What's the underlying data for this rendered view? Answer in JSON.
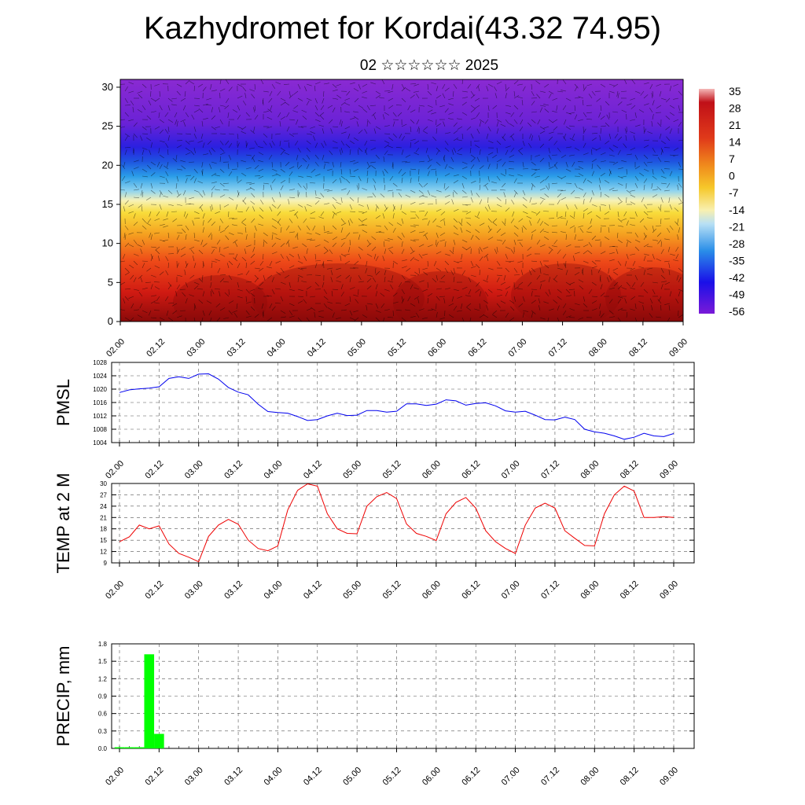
{
  "title": "Kazhydromet for Kordai(43.32 74.95)",
  "subtitle": "02 ☆☆☆☆☆☆ 2025",
  "chart_data": [
    {
      "type": "heatmap",
      "name": "upper-air-section",
      "x_ticks": [
        "02.00",
        "02.12",
        "03.00",
        "03.12",
        "04.00",
        "04.12",
        "05.00",
        "05.12",
        "06.00",
        "06.12",
        "07.00",
        "07.12",
        "08.00",
        "08.12",
        "09.00"
      ],
      "y_ticks": [
        0,
        5,
        10,
        15,
        20,
        25,
        30
      ],
      "ylim": [
        0,
        31
      ],
      "colorbar_labels": [
        "35",
        "28",
        "21",
        "14",
        "7",
        "0",
        "-7",
        "-14",
        "-21",
        "-28",
        "-35",
        "-42",
        "-49",
        "-56"
      ],
      "colors": [
        "#7a1ad8",
        "#1a2ee0",
        "#27a8ee",
        "#f6f1b0",
        "#f6d02a",
        "#f08f1c",
        "#e0381a",
        "#b10f0f"
      ],
      "has_wind_barbs": true
    },
    {
      "type": "line",
      "name": "PMSL",
      "ylabel": "PMSL",
      "y_ticks": [
        "1028",
        "1024",
        "1020",
        "1016",
        "1012",
        "1008",
        "1004"
      ],
      "ylim": [
        1004,
        1028
      ],
      "color": "#0000ee",
      "x_ticks": [
        "02.00",
        "02.12",
        "03.00",
        "03.12",
        "04.00",
        "04.12",
        "05.00",
        "05.12",
        "06.00",
        "06.12",
        "07.00",
        "07.12",
        "08.00",
        "08.12",
        "09.00"
      ],
      "x": [
        0,
        3,
        6,
        9,
        12,
        15,
        18,
        21,
        24,
        27,
        30,
        33,
        36,
        39,
        42,
        45,
        48,
        51,
        54,
        57,
        60,
        63,
        66,
        69,
        72,
        75,
        78,
        81,
        84,
        87,
        90,
        93,
        96,
        99,
        102,
        105,
        108,
        111,
        114,
        117,
        120,
        123,
        126,
        129,
        132,
        135,
        138,
        141,
        144,
        147,
        150,
        153,
        156,
        159,
        162,
        165,
        168
      ],
      "values": [
        1019.0,
        1019.8,
        1020.1,
        1020.3,
        1020.7,
        1023.2,
        1023.7,
        1023.2,
        1024.5,
        1024.6,
        1023.0,
        1020.5,
        1019.1,
        1018.3,
        1015.5,
        1013.3,
        1013.0,
        1012.8,
        1011.8,
        1010.6,
        1010.9,
        1012.0,
        1012.8,
        1012.1,
        1012.2,
        1013.6,
        1013.6,
        1013.1,
        1013.4,
        1015.6,
        1015.6,
        1015.1,
        1015.5,
        1016.8,
        1016.5,
        1015.2,
        1015.7,
        1015.9,
        1015.0,
        1013.5,
        1013.1,
        1013.4,
        1012.2,
        1010.9,
        1010.8,
        1011.6,
        1010.9,
        1008.0,
        1007.2,
        1006.8,
        1006.0,
        1005.0,
        1005.6,
        1006.8,
        1006.0,
        1005.8,
        1006.7
      ]
    },
    {
      "type": "line",
      "name": "TEMP at 2 M",
      "ylabel": "TEMP at 2 M",
      "y_ticks": [
        "30",
        "27",
        "24",
        "21",
        "18",
        "15",
        "12",
        "9"
      ],
      "ylim": [
        9,
        30
      ],
      "color": "#ee0000",
      "x_ticks": [
        "02.00",
        "02.12",
        "03.00",
        "03.12",
        "04.00",
        "04.12",
        "05.00",
        "05.12",
        "06.00",
        "06.12",
        "07.00",
        "07.12",
        "08.00",
        "08.12",
        "09.00"
      ],
      "x": [
        0,
        3,
        6,
        9,
        12,
        15,
        18,
        21,
        24,
        27,
        30,
        33,
        36,
        39,
        42,
        45,
        48,
        51,
        54,
        57,
        60,
        63,
        66,
        69,
        72,
        75,
        78,
        81,
        84,
        87,
        90,
        93,
        96,
        99,
        102,
        105,
        108,
        111,
        114,
        117,
        120,
        123,
        126,
        129,
        132,
        135,
        138,
        141,
        144,
        147,
        150,
        153,
        156,
        159,
        162,
        165,
        168
      ],
      "values": [
        14.6,
        15.9,
        19.0,
        18.0,
        18.8,
        14.0,
        11.5,
        10.5,
        9.3,
        16.0,
        19.0,
        20.5,
        19.2,
        15.0,
        12.8,
        12.2,
        13.5,
        23.0,
        28.2,
        29.9,
        29.3,
        22.0,
        18.0,
        16.8,
        16.7,
        24.0,
        26.5,
        27.6,
        26.0,
        19.3,
        16.8,
        16.0,
        14.9,
        22.0,
        25.0,
        26.3,
        23.5,
        17.5,
        14.6,
        12.8,
        11.5,
        19.0,
        23.5,
        24.8,
        23.5,
        17.5,
        15.5,
        13.6,
        13.5,
        22.0,
        27.0,
        29.3,
        28.0,
        21.0,
        21.0,
        21.2,
        21.0
      ]
    },
    {
      "type": "bar",
      "name": "PRECIP",
      "ylabel": "PRECIP, mm",
      "y_ticks": [
        "1.8",
        "1.5",
        "1.2",
        "0.9",
        "0.6",
        "0.3",
        "0.0"
      ],
      "ylim": [
        0,
        1.8
      ],
      "color": "#00ff00",
      "x_ticks": [
        "02.00",
        "02.12",
        "03.00",
        "03.12",
        "04.00",
        "04.12",
        "05.00",
        "05.12",
        "06.00",
        "06.12",
        "07.00",
        "07.12",
        "08.00",
        "08.12",
        "09.00"
      ],
      "x": [
        0,
        3,
        6,
        9,
        12,
        15,
        18,
        21,
        24,
        27,
        30,
        33,
        36,
        39,
        42,
        45,
        48,
        51,
        54,
        57,
        60,
        63,
        66,
        69,
        72,
        75,
        78,
        81,
        84,
        87,
        90,
        93,
        96,
        99,
        102,
        105,
        108,
        111,
        114,
        117,
        120,
        123,
        126,
        129,
        132,
        135,
        138,
        141,
        144,
        147,
        150,
        153,
        156,
        159,
        162,
        165,
        168
      ],
      "values": [
        0.02,
        0.02,
        0.02,
        1.62,
        0.25,
        0,
        0,
        0,
        0,
        0,
        0,
        0,
        0,
        0,
        0,
        0,
        0,
        0,
        0,
        0,
        0,
        0,
        0,
        0,
        0,
        0,
        0,
        0,
        0,
        0,
        0,
        0,
        0,
        0,
        0,
        0,
        0,
        0,
        0,
        0,
        0,
        0,
        0,
        0,
        0,
        0,
        0,
        0,
        0,
        0,
        0,
        0,
        0,
        0,
        0,
        0,
        0
      ]
    }
  ]
}
